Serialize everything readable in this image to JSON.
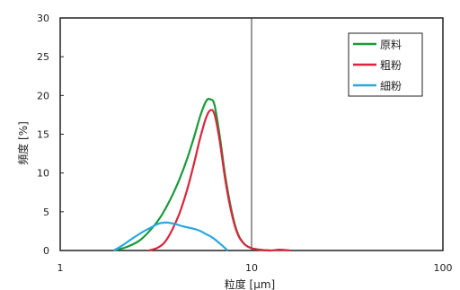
{
  "chart_data": {
    "type": "line",
    "title": "",
    "xlabel": "粒度 [μm]",
    "ylabel": "頻度 [%]",
    "x_scale": "log",
    "xlim": [
      1,
      100
    ],
    "ylim": [
      0,
      30
    ],
    "x_ticks": [
      "1",
      "10",
      "100"
    ],
    "y_ticks": [
      "0",
      "5",
      "10",
      "15",
      "20",
      "25",
      "30"
    ],
    "reference_line_x": 10,
    "grid": false,
    "legend_position": "top-right",
    "series": [
      {
        "name": "原料",
        "color": "#1a9a3a",
        "x": [
          1.9,
          2.2,
          2.6,
          3.0,
          3.4,
          3.8,
          4.2,
          4.6,
          5.0,
          5.4,
          5.8,
          6.1,
          6.4,
          6.8,
          7.3,
          7.9,
          8.5,
          9.2,
          10.0,
          11.0,
          12.5
        ],
        "y": [
          0,
          0.4,
          1.3,
          2.8,
          4.6,
          6.8,
          9.2,
          11.8,
          14.6,
          17.4,
          19.3,
          19.5,
          18.8,
          15.0,
          9.5,
          4.9,
          2.1,
          0.8,
          0.3,
          0.1,
          0
        ]
      },
      {
        "name": "粗粉",
        "color": "#d8263c",
        "x": [
          2.9,
          3.2,
          3.5,
          3.8,
          4.2,
          4.6,
          5.0,
          5.4,
          5.8,
          6.1,
          6.4,
          6.8,
          7.3,
          7.9,
          8.5,
          9.2,
          10.0,
          11.0,
          12.5,
          14.0,
          16.0
        ],
        "y": [
          0,
          0.3,
          1.0,
          2.4,
          4.8,
          7.8,
          11.2,
          14.6,
          17.2,
          18.1,
          17.6,
          14.3,
          9.0,
          4.6,
          2.0,
          0.8,
          0.3,
          0.1,
          0,
          0.1,
          0
        ]
      },
      {
        "name": "細粉",
        "color": "#2aa8de",
        "x": [
          1.9,
          2.1,
          2.4,
          2.7,
          3.0,
          3.3,
          3.6,
          4.0,
          4.4,
          4.8,
          5.3,
          5.8,
          6.3,
          6.9,
          7.5
        ],
        "y": [
          0,
          0.6,
          1.6,
          2.4,
          3.0,
          3.5,
          3.6,
          3.4,
          3.1,
          2.9,
          2.6,
          2.1,
          1.6,
          0.8,
          0
        ]
      }
    ]
  }
}
